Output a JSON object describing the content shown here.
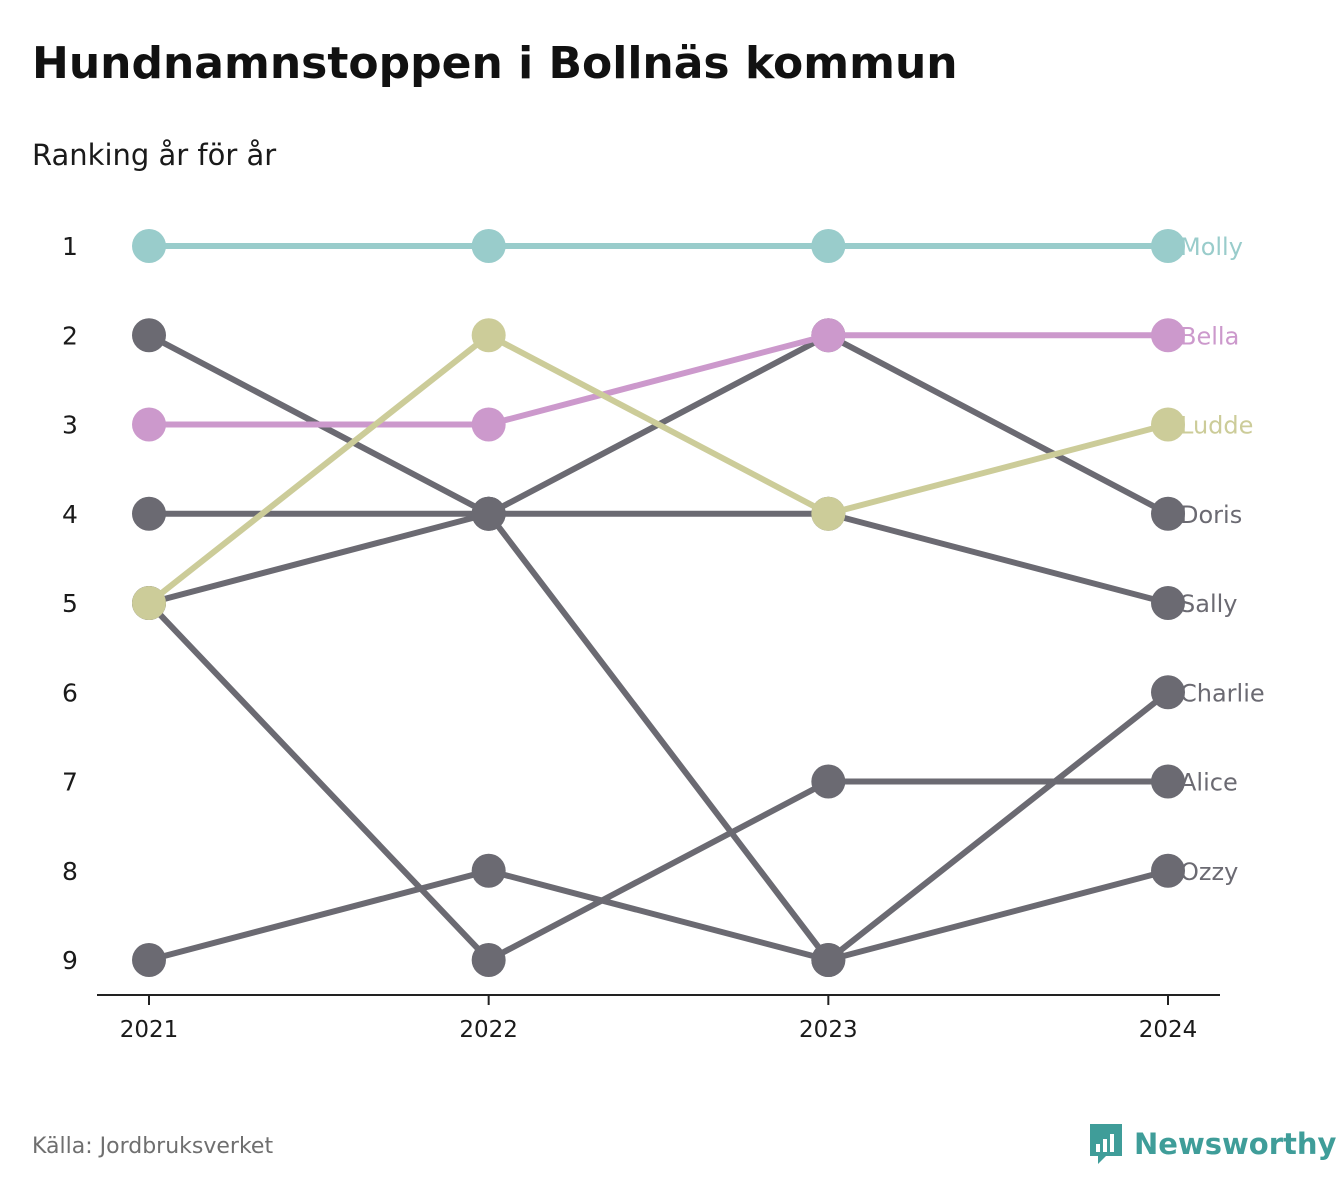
{
  "title": "Hundnamnstoppen i Bollnäs kommun",
  "subtitle": "Ranking år för år",
  "source": "Källa: Jordbruksverket",
  "brand": "Newsworthy",
  "colors": {
    "highlight_gray": "#6b6a72",
    "brand": "#3f9d99"
  },
  "chart_data": {
    "type": "line",
    "x": [
      "2021",
      "2022",
      "2023",
      "2024"
    ],
    "y_ticks": [
      "1",
      "2",
      "3",
      "4",
      "5",
      "6",
      "7",
      "8",
      "9"
    ],
    "ylim": [
      1,
      9
    ],
    "y_inverted": true,
    "series": [
      {
        "name": "Molly",
        "color": "#99cccb",
        "values": [
          1,
          1,
          1,
          1
        ]
      },
      {
        "name": "Bella",
        "color": "#cc99cc",
        "values": [
          3,
          3,
          2,
          2
        ]
      },
      {
        "name": "Ludde",
        "color": "#cccc99",
        "values": [
          5,
          2,
          4,
          3
        ]
      },
      {
        "name": "Doris",
        "color": "#6b6a72",
        "values": [
          5,
          4,
          2,
          4
        ]
      },
      {
        "name": "Sally",
        "color": "#6b6a72",
        "values": [
          4,
          4,
          4,
          5
        ]
      },
      {
        "name": "Charlie",
        "color": "#6b6a72",
        "values": [
          2,
          4,
          9,
          6
        ]
      },
      {
        "name": "Alice",
        "color": "#6b6a72",
        "values": [
          5,
          9,
          7,
          7
        ]
      },
      {
        "name": "Ozzy",
        "color": "#6b6a72",
        "values": [
          9,
          8,
          9,
          8
        ]
      }
    ]
  }
}
